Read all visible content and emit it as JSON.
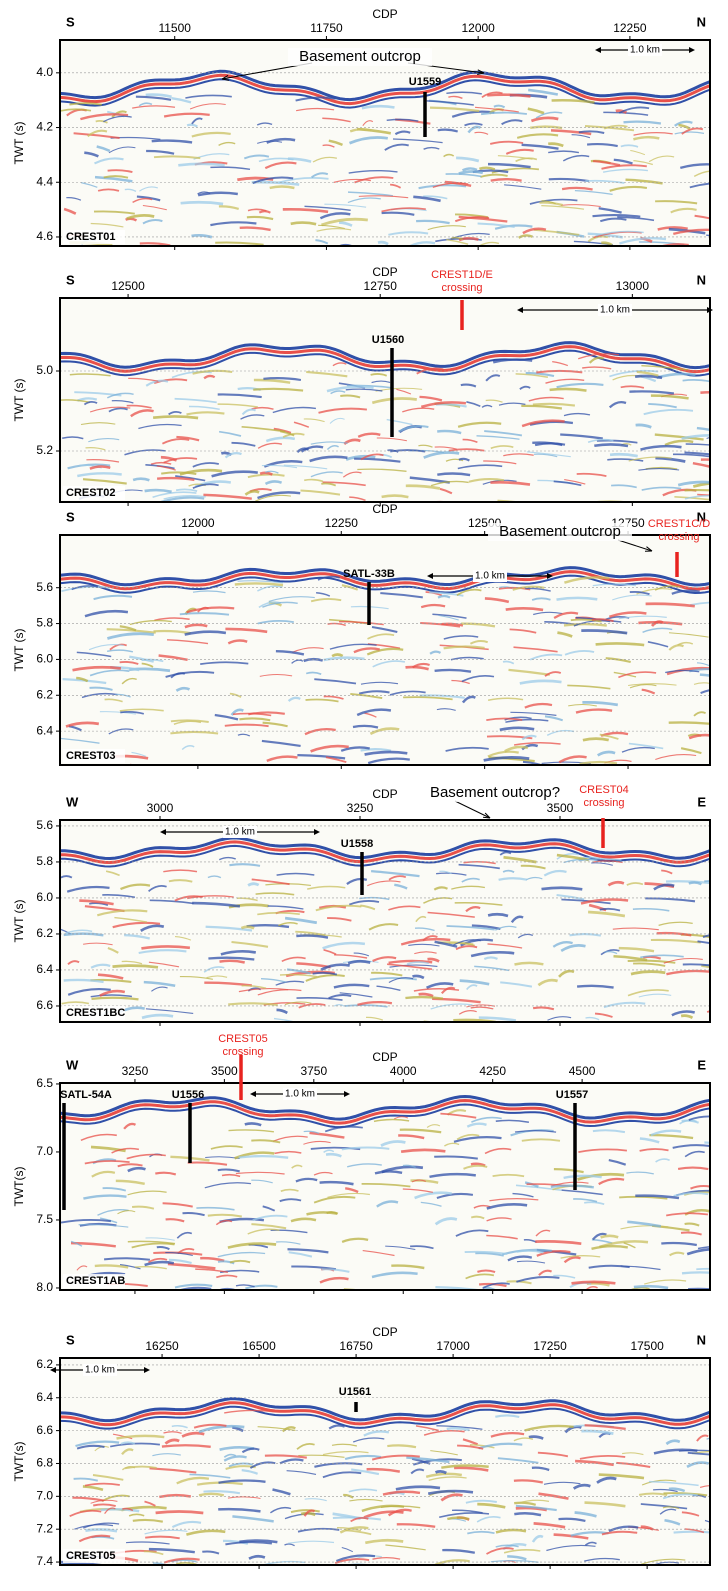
{
  "panels": [
    {
      "left_label": "S",
      "right_label": "N",
      "x_label": "CDP",
      "y_label": "TWT (s)",
      "name": "CREST01",
      "xlim": [
        11311,
        12382
      ],
      "xticks": [
        11500,
        11750,
        12000,
        12250
      ],
      "ylim": [
        3.88,
        4.633
      ],
      "yticks": [
        {
          "value": 4,
          "label": "4.0"
        },
        4.2,
        4.4,
        4.6
      ],
      "grid": true,
      "scale_bar": "1.0 km",
      "annotations": [
        {
          "lines": [
            "Basement outcrop"
          ],
          "color": "#000000"
        },
        {
          "lines": [
            "U1559"
          ],
          "color": "#000000"
        }
      ]
    },
    {
      "left_label": "S",
      "right_label": "N",
      "x_label": "CDP",
      "y_label": "TWT (s)",
      "name": "CREST02",
      "xlim": [
        12432.5,
        13077
      ],
      "xticks": [
        12500,
        12750,
        13000
      ],
      "ylim": [
        4.8175,
        5.3275
      ],
      "yticks": [
        {
          "value": 5,
          "label": "5.0"
        },
        5.2
      ],
      "grid": true,
      "scale_bar": "1.0 km",
      "annotations": [
        {
          "lines": [
            "CREST1D/E",
            "crossing"
          ],
          "color": "#e8231f"
        },
        {
          "lines": [
            "U1560"
          ],
          "color": "#000000"
        }
      ]
    },
    {
      "left_label": "S",
      "right_label": "N",
      "x_label": "CDP",
      "y_label": "TWT (s)",
      "name": "CREST03",
      "xlim": [
        11759.6,
        12892.9
      ],
      "xticks": [
        12000,
        12250,
        12500,
        12750
      ],
      "ylim": [
        5.306,
        6.589
      ],
      "yticks": [
        5.6,
        5.8,
        {
          "value": 6,
          "label": "6.0"
        },
        6.2,
        6.4
      ],
      "grid": true,
      "scale_bar": "1.0 km",
      "annotations": [
        {
          "lines": [
            "Basement outcrop"
          ],
          "color": "#000000"
        },
        {
          "lines": [
            "SATL-33B"
          ],
          "color": "#000000"
        },
        {
          "lines": [
            "CREST1C/D",
            "crossing"
          ],
          "color": "#e8231f"
        }
      ]
    },
    {
      "left_label": "W",
      "right_label": "E",
      "x_label": "CDP",
      "y_label": "TWT (s)",
      "name": "CREST1BC",
      "xlim": [
        2875,
        3687.5
      ],
      "xticks": [
        3000,
        3250,
        3500
      ],
      "ylim": [
        5.567,
        6.689
      ],
      "yticks": [
        5.6,
        5.8,
        {
          "value": 6,
          "label": "6.0"
        },
        6.2,
        6.4,
        6.6
      ],
      "grid": true,
      "scale_bar": "1.0 km",
      "annotations": [
        {
          "lines": [
            "Basement outcrop?"
          ],
          "color": "#000000"
        },
        {
          "lines": [
            "CREST04",
            "crossing"
          ],
          "color": "#e8231f"
        },
        {
          "lines": [
            "U1558"
          ],
          "color": "#000000"
        }
      ]
    },
    {
      "left_label": "W",
      "right_label": "E",
      "x_label": "CDP",
      "y_label": "TWT(s)",
      "name": "CREST1AB",
      "xlim": [
        3040.5,
        4857.5
      ],
      "xticks": [
        3250,
        3500,
        3750,
        4000,
        4250,
        4500
      ],
      "ylim": [
        6.493,
        8.015
      ],
      "yticks": [
        6.5,
        {
          "value": 7,
          "label": "7.0"
        },
        7.5,
        {
          "value": 8,
          "label": "8.0"
        }
      ],
      "grid": false,
      "scale_bar": "1.0 km",
      "annotations": [
        {
          "lines": [
            "CREST05",
            "crossing"
          ],
          "color": "#e8231f"
        },
        {
          "lines": [
            "SATL-54A"
          ],
          "color": "#000000"
        },
        {
          "lines": [
            "U1556"
          ],
          "color": "#000000"
        },
        {
          "lines": [
            "U1557"
          ],
          "color": "#000000"
        }
      ]
    },
    {
      "left_label": "S",
      "right_label": "N",
      "x_label": "CDP",
      "y_label": "TWT(s)",
      "name": "CREST05",
      "xlim": [
        15987,
        17662
      ],
      "xticks": [
        16250,
        16500,
        16750,
        17000,
        17250,
        17500
      ],
      "ylim": [
        6.158,
        7.418
      ],
      "yticks": [
        6.2,
        6.4,
        6.6,
        6.8,
        {
          "value": 7,
          "label": "7.0"
        },
        7.2,
        7.4
      ],
      "grid": true,
      "scale_bar": "1.0 km",
      "annotations": [
        {
          "lines": [
            "U1561"
          ],
          "color": "#000000"
        }
      ]
    }
  ]
}
